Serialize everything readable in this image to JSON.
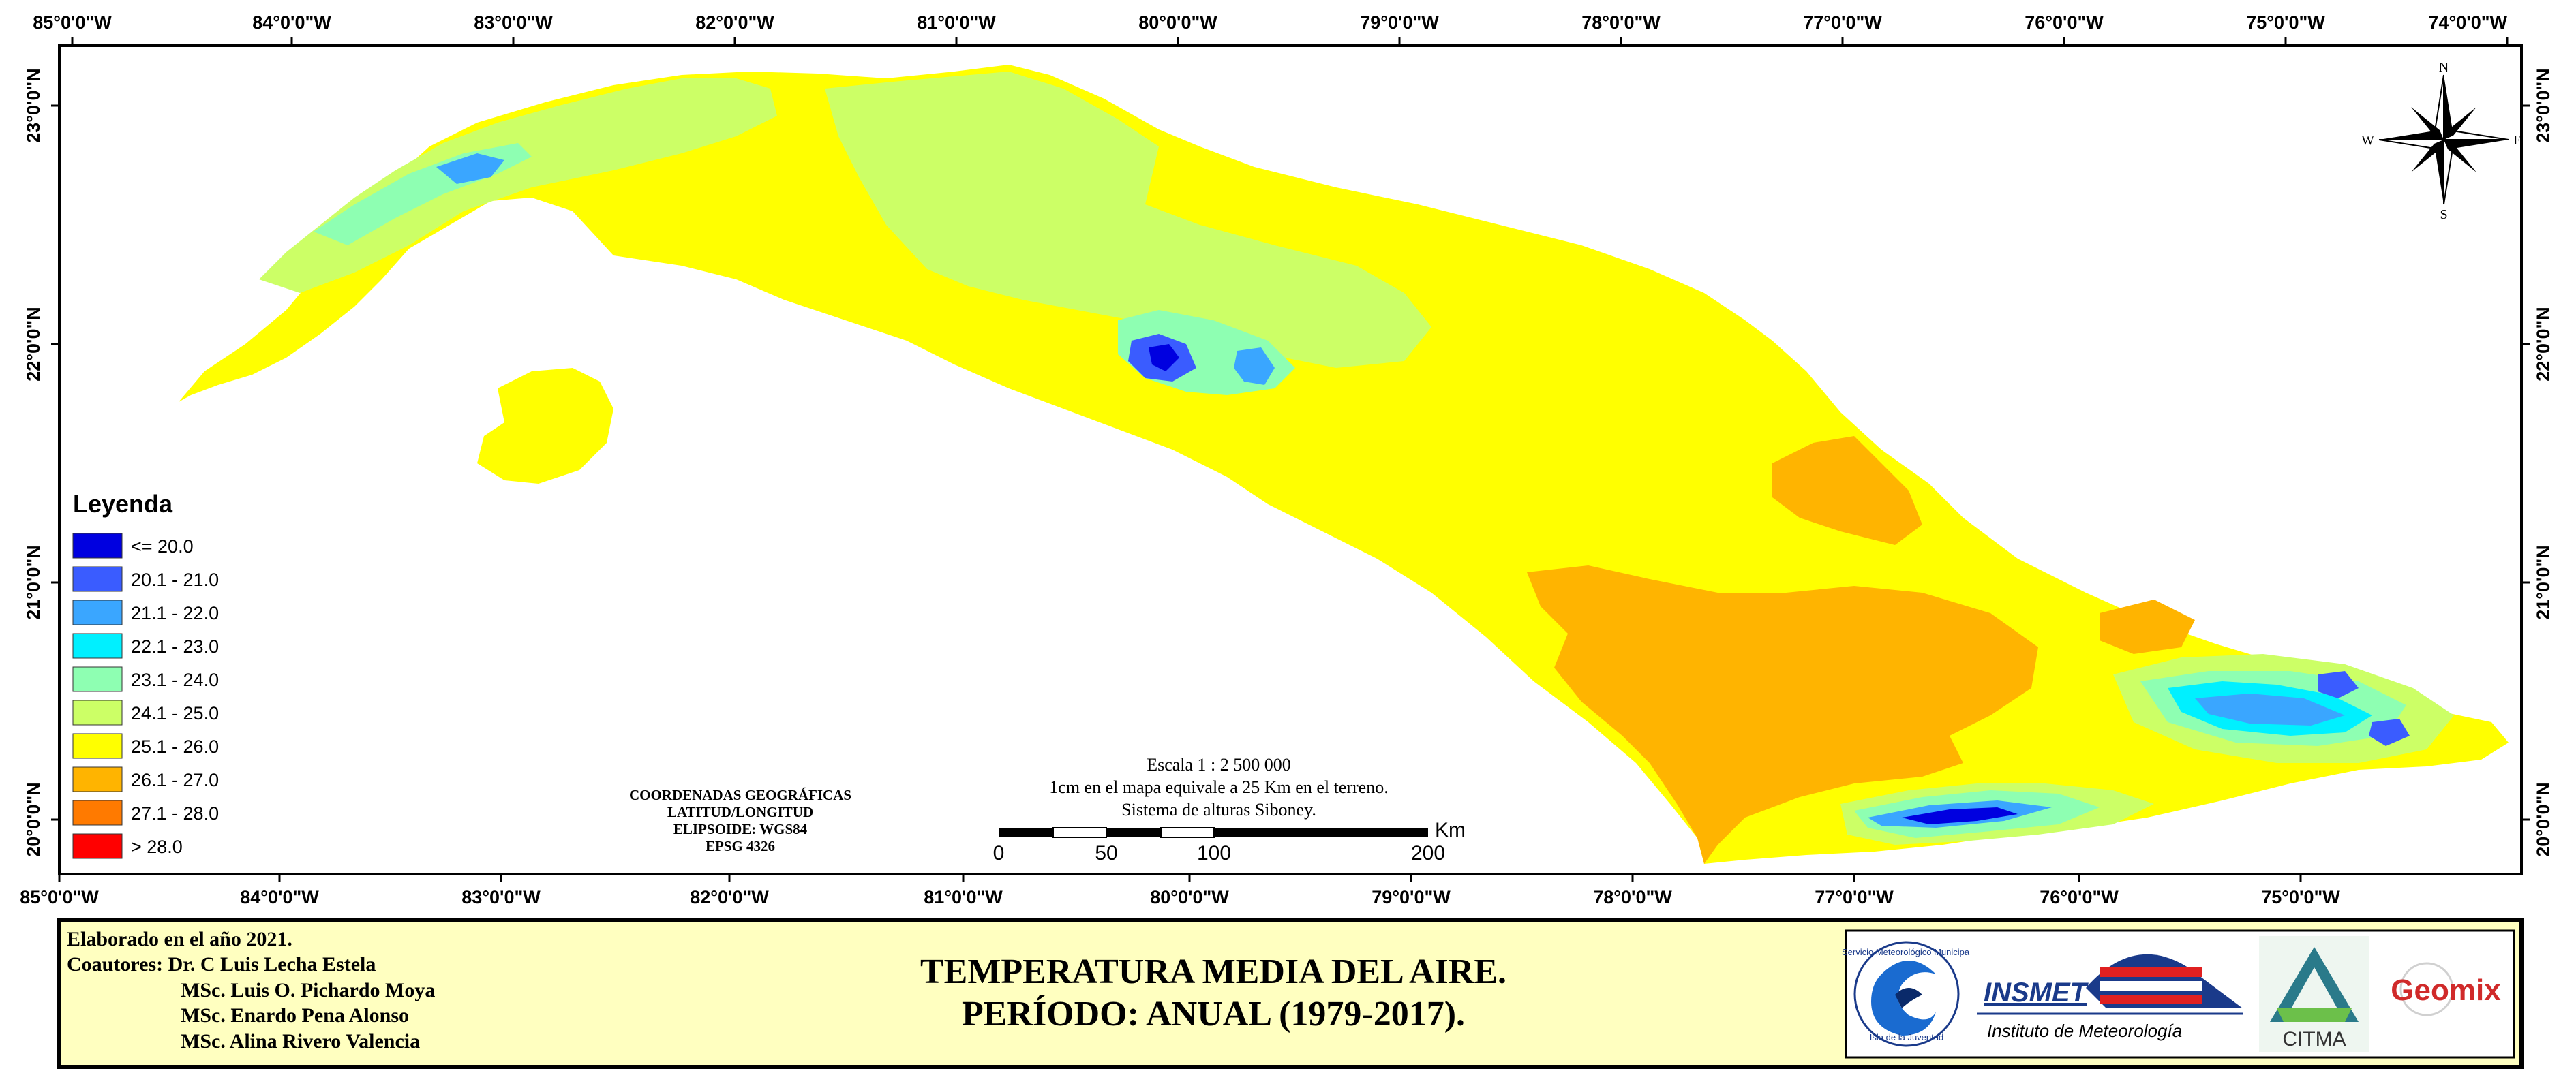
{
  "map": {
    "top_lon_labels": [
      "85°0'0\"W",
      "84°0'0\"W",
      "83°0'0\"W",
      "82°0'0\"W",
      "81°0'0\"W",
      "80°0'0\"W",
      "79°0'0\"W",
      "78°0'0\"W",
      "77°0'0\"W",
      "76°0'0\"W",
      "75°0'0\"W",
      "74°0'0\"W"
    ],
    "bottom_lon_labels": [
      "85°0'0\"W",
      "84°0'0\"W",
      "83°0'0\"W",
      "82°0'0\"W",
      "81°0'0\"W",
      "80°0'0\"W",
      "79°0'0\"W",
      "78°0'0\"W",
      "77°0'0\"W",
      "76°0'0\"W",
      "75°0'0\"W"
    ],
    "lat_labels": [
      "23°0'0\"N",
      "22°0'0\"N",
      "21°0'0\"N",
      "20°0'0\"N"
    ]
  },
  "legend": {
    "title": "Leyenda",
    "items": [
      {
        "label": "<= 20.0",
        "color": "#0000e0"
      },
      {
        "label": "20.1 - 21.0",
        "color": "#3a5cff"
      },
      {
        "label": "21.1 - 22.0",
        "color": "#3aa6ff"
      },
      {
        "label": "22.1 - 23.0",
        "color": "#00f0ff"
      },
      {
        "label": "23.1 - 24.0",
        "color": "#8effb2"
      },
      {
        "label": "24.1 - 25.0",
        "color": "#ccff66"
      },
      {
        "label": "25.1 - 26.0",
        "color": "#ffff00"
      },
      {
        "label": "26.1 - 27.0",
        "color": "#ffb400"
      },
      {
        "label": "27.1 - 28.0",
        "color": "#ff7a00"
      },
      {
        "label": "> 28.0",
        "color": "#ff0000"
      }
    ]
  },
  "coords_note": [
    "COORDENADAS GEOGRÁFICAS",
    "LATITUD/LONGITUD",
    "ELIPSOIDE: WGS84",
    "EPSG 4326"
  ],
  "scale": {
    "text": [
      "Escala 1 : 2 500 000",
      "1cm en el mapa equivale a 25 Km en el terreno.",
      "Sistema de alturas Siboney."
    ],
    "ticks": [
      "0",
      "50",
      "100",
      "200"
    ],
    "unit": "Km"
  },
  "compass": {
    "n": "N",
    "s": "S",
    "e": "E",
    "w": "W"
  },
  "footer": {
    "left": [
      "Elaborado en el año 2021.",
      "Coautores: Dr. C Luis Lecha Estela",
      "MSc. Luis O. Pichardo Moya",
      "MSc. Enardo Pena Alonso",
      "MSc. Alina Rivero Valencia"
    ],
    "title": [
      "TEMPERATURA MEDIA DEL AIRE.",
      "PERÍODO: ANUAL (1979-2017)."
    ],
    "logos": {
      "smj_ring": "Servicio Meteorológico Municipal",
      "smj_bottom": "Isla de la Juventud",
      "insmet": "INSMET",
      "insmet_sub": "Instituto de Meteorología",
      "citma": "CITMA",
      "geomix": "Geomix"
    }
  }
}
